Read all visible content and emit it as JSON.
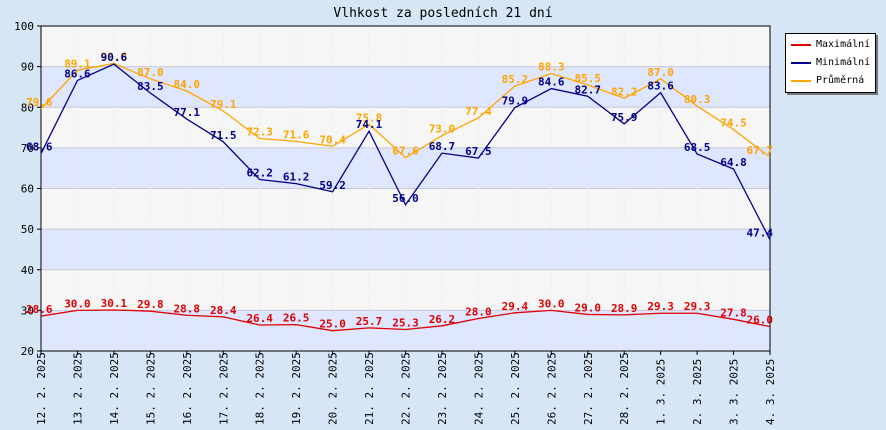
{
  "chart_data": {
    "type": "line",
    "title": "Vlhkost za posledních 21 dní",
    "xlabel": "",
    "ylabel": "",
    "ylim": [
      20,
      100
    ],
    "yticks": [
      20,
      30,
      40,
      50,
      60,
      70,
      80,
      90,
      100
    ],
    "grid": true,
    "legend_position": "top-right",
    "categories": [
      "12. 2. 2025",
      "13. 2. 2025",
      "14. 2. 2025",
      "15. 2. 2025",
      "16. 2. 2025",
      "17. 2. 2025",
      "18. 2. 2025",
      "19. 2. 2025",
      "20. 2. 2025",
      "21. 2. 2025",
      "22. 2. 2025",
      "23. 2. 2025",
      "24. 2. 2025",
      "25. 2. 2025",
      "26. 2. 2025",
      "27. 2. 2025",
      "28. 2. 2025",
      "1. 3. 2025",
      "2. 3. 2025",
      "3. 3. 2025",
      "4. 3. 2025"
    ],
    "series": [
      {
        "name": "Maximální",
        "color": "#e00000",
        "values": [
          28.6,
          30.0,
          30.1,
          29.8,
          28.8,
          28.4,
          26.4,
          26.5,
          25.0,
          25.7,
          25.3,
          26.2,
          28.0,
          29.4,
          30.0,
          29.0,
          28.9,
          29.3,
          29.3,
          27.8,
          26.0
        ]
      },
      {
        "name": "Minimální",
        "color": "#00008b",
        "values": [
          68.6,
          86.6,
          90.6,
          83.5,
          77.1,
          71.5,
          62.2,
          61.2,
          59.2,
          74.1,
          56.0,
          68.7,
          67.5,
          79.9,
          84.6,
          82.7,
          75.9,
          83.6,
          68.5,
          64.8,
          47.4
        ]
      },
      {
        "name": "Průměrná",
        "color": "#ffa500",
        "values": [
          79.6,
          89.1,
          90.8,
          87.0,
          84.0,
          79.1,
          72.3,
          71.6,
          70.4,
          75.8,
          67.6,
          73.0,
          77.4,
          85.2,
          88.3,
          85.5,
          82.2,
          87.0,
          80.3,
          74.5,
          67.7
        ]
      }
    ],
    "band_colors": [
      "#dfe6ff",
      "#f6f6f6"
    ],
    "background_color": "#d6e6f4"
  }
}
